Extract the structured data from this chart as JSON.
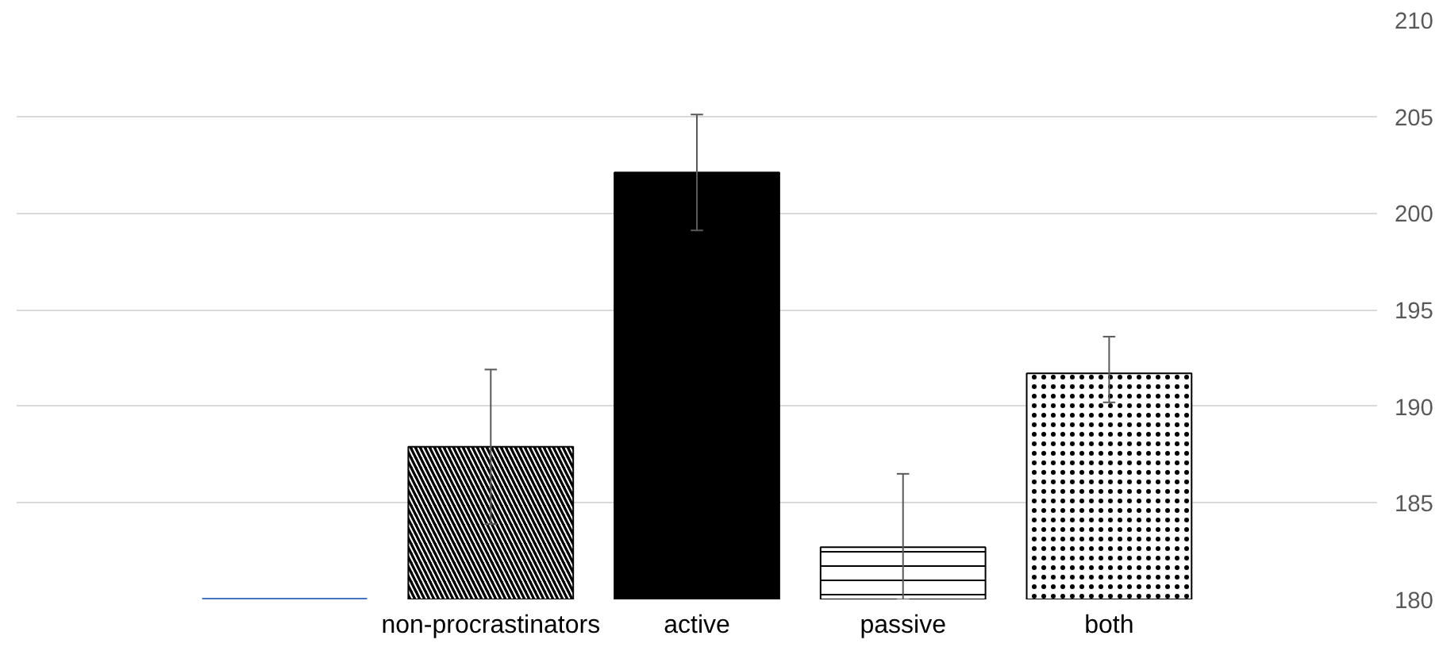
{
  "chart_data": {
    "type": "bar",
    "categories": [
      null,
      "non-procrastinators",
      "active",
      "passive",
      "both"
    ],
    "values": [
      180,
      187.9,
      202.1,
      182.7,
      191.7
    ],
    "colors": [
      "#4472c4",
      "#000000",
      "#000000",
      "#ffffff",
      "#ffffff"
    ],
    "errors": [
      null,
      4,
      3,
      [
        180,
        186.5
      ],
      [
        190.2,
        193.6
      ]
    ],
    "ylim": [
      180,
      210
    ],
    "yticks": [
      180,
      185,
      190,
      195,
      200,
      205,
      210
    ],
    "grid": "y"
  }
}
